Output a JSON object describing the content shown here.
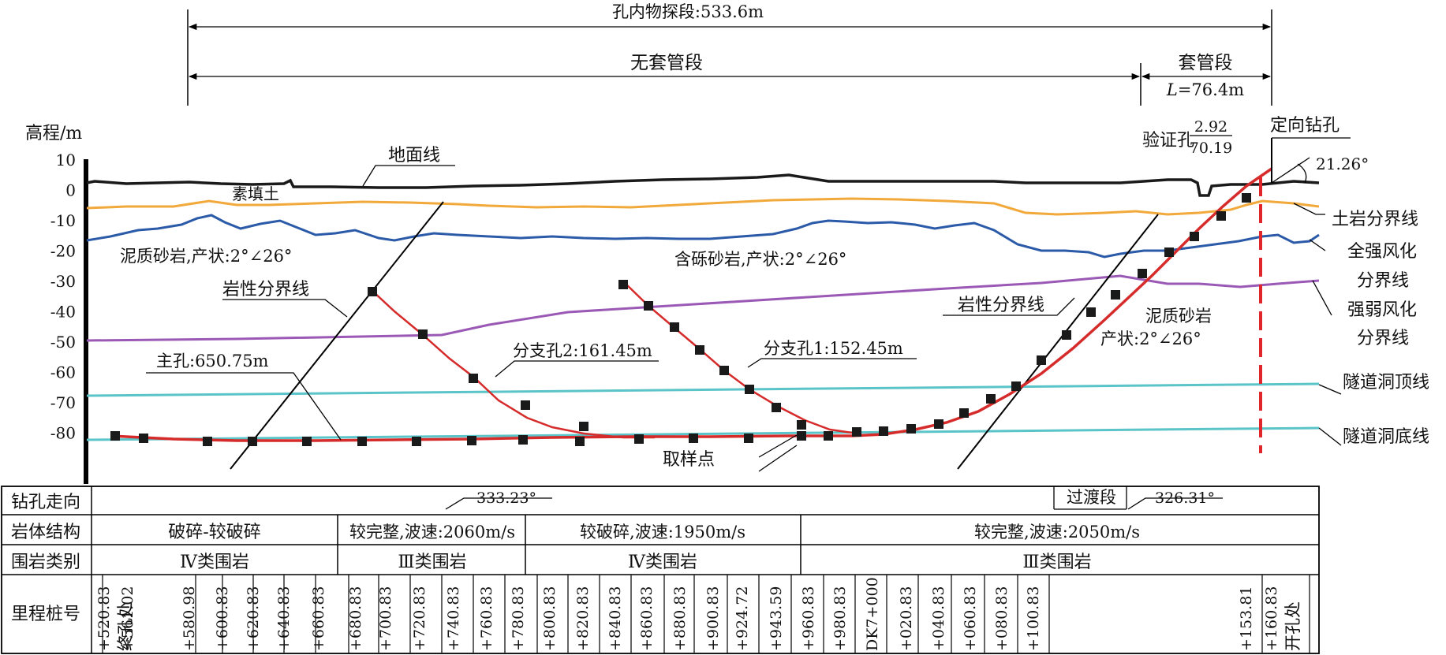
{
  "dims": {
    "total": "孔内物探段:533.6m",
    "uncased": "无套管段",
    "cased": "套管段",
    "cased_len": "=76.4m",
    "cased_len_var": "L"
  },
  "axis": {
    "title": "高程/m",
    "ticks": [
      10,
      0,
      -10,
      -20,
      -30,
      -40,
      -50,
      -60,
      -70,
      -80
    ]
  },
  "labels": {
    "ground": "地面线",
    "fill": "素填土",
    "verify_hole": "验证孔",
    "verify_num": "2.92",
    "verify_den": "70.19",
    "dir_hole": "定向钻孔",
    "angle": "21.26°",
    "mudstone": "泥质砂岩,产状:2°∠26°",
    "gravel": "含砾砂岩,产状:2°∠26°",
    "litho1": "岩性分界线",
    "litho2": "岩性分界线",
    "main_hole": "主孔:650.75m",
    "branch2": "分支孔2:161.45m",
    "branch1": "分支孔1:152.45m",
    "mud2_a": "泥质砂岩",
    "mud2_b": "产状:2°∠26°",
    "sample": "取样点"
  },
  "legend_right": {
    "soil_rock": "土岩分界线",
    "full_weather_a": "全强风化",
    "full_weather_b": "分界线",
    "strong_weak_a": "强弱风化",
    "strong_weak_b": "分界线",
    "tunnel_top": "隧道洞顶线",
    "tunnel_bottom": "隧道洞底线"
  },
  "table": {
    "rows": [
      "钻孔走向",
      "岩体结构",
      "围岩类别",
      "里程桩号"
    ],
    "azimuth1": "333.23°",
    "transition": "过渡段",
    "azimuth2": "326.31°",
    "structure": [
      "破碎-较破碎",
      "较完整,波速:2060m/s",
      "较破碎,波速:1950m/s",
      "较完整,波速:2050m/s"
    ],
    "rock_class": [
      "Ⅳ类围岩",
      "Ⅲ类围岩",
      "Ⅳ类围岩",
      "Ⅲ类围岩"
    ],
    "chainage": [
      {
        "text": "+520.83",
        "sub": "终孔处"
      },
      {
        "text": "+561.02"
      },
      {
        "text": "+580.98"
      },
      {
        "text": "+600.83"
      },
      {
        "text": "+620.83"
      },
      {
        "text": "+640.83"
      },
      {
        "text": "+660.83"
      },
      {
        "text": "+680.83"
      },
      {
        "text": "+700.83"
      },
      {
        "text": "+720.83"
      },
      {
        "text": "+740.83"
      },
      {
        "text": "+760.83"
      },
      {
        "text": "+780.83"
      },
      {
        "text": "+800.83"
      },
      {
        "text": "+820.83"
      },
      {
        "text": "+840.83"
      },
      {
        "text": "+860.83"
      },
      {
        "text": "+880.83"
      },
      {
        "text": "+900.83"
      },
      {
        "text": "+924.72"
      },
      {
        "text": "+943.59"
      },
      {
        "text": "+960.83"
      },
      {
        "text": "+980.83"
      },
      {
        "text": "DK7+000"
      },
      {
        "text": "+020.83"
      },
      {
        "text": "+040.83"
      },
      {
        "text": "+060.83"
      },
      {
        "text": "+080.83"
      },
      {
        "text": "+100.83"
      },
      {
        "text": "+153.81"
      },
      {
        "text": "+160.83",
        "sub": "开孔处"
      }
    ]
  },
  "colors": {
    "ground": "#1a1a1a",
    "soil_rock": "#f2a93b",
    "weathering": "#2a5aa8",
    "strong_weak": "#9b59b6",
    "tunnel": "#5bc4c9",
    "borehole": "#d62b2b",
    "sample": "#1a1a1a",
    "line": "#000000"
  }
}
